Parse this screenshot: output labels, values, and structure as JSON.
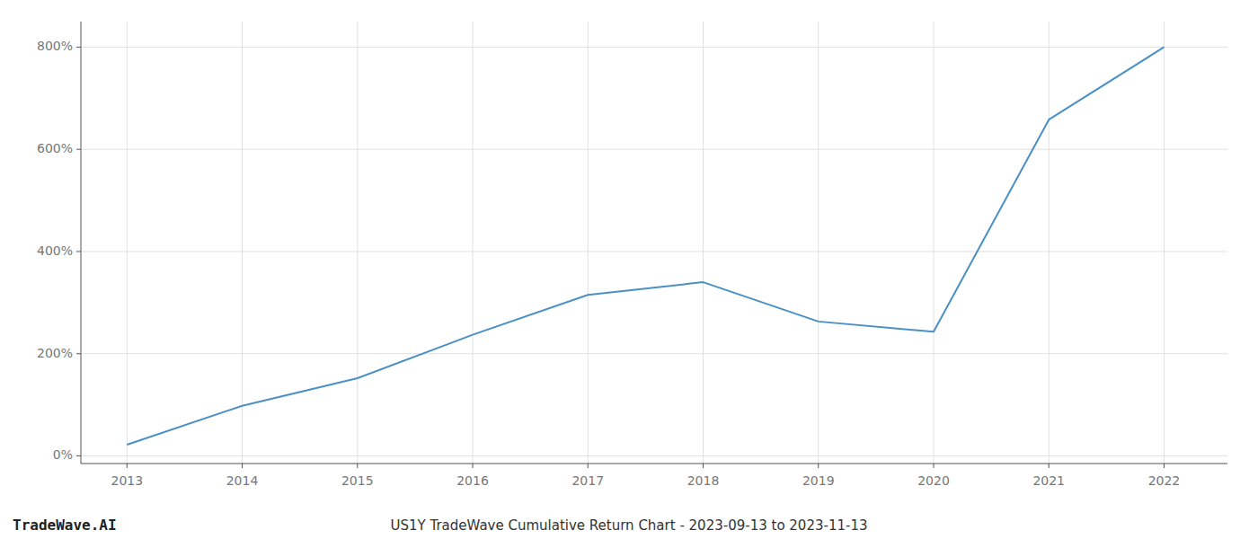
{
  "chart_data": {
    "type": "line",
    "title": "US1Y TradeWave Cumulative Return Chart - 2023-09-13 to 2023-11-13",
    "annotations": [
      "TradeWave.AI"
    ],
    "x": [
      2013,
      2014,
      2015,
      2016,
      2017,
      2018,
      2019,
      2020,
      2021,
      2022
    ],
    "values": [
      22,
      98,
      152,
      237,
      315,
      340,
      263,
      243,
      658,
      800
    ],
    "color": "#4a90c4",
    "xlim": [
      2012.6,
      2022.55
    ],
    "ylim": [
      -15,
      850
    ],
    "xticks": [
      2013,
      2014,
      2015,
      2016,
      2017,
      2018,
      2019,
      2020,
      2021,
      2022
    ],
    "yticks": [
      {
        "value": 0,
        "label": "0%"
      },
      {
        "value": 200,
        "label": "200%"
      },
      {
        "value": 400,
        "label": "400%"
      },
      {
        "value": 600,
        "label": "600%"
      },
      {
        "value": 800,
        "label": "800%"
      }
    ],
    "grid": true
  }
}
